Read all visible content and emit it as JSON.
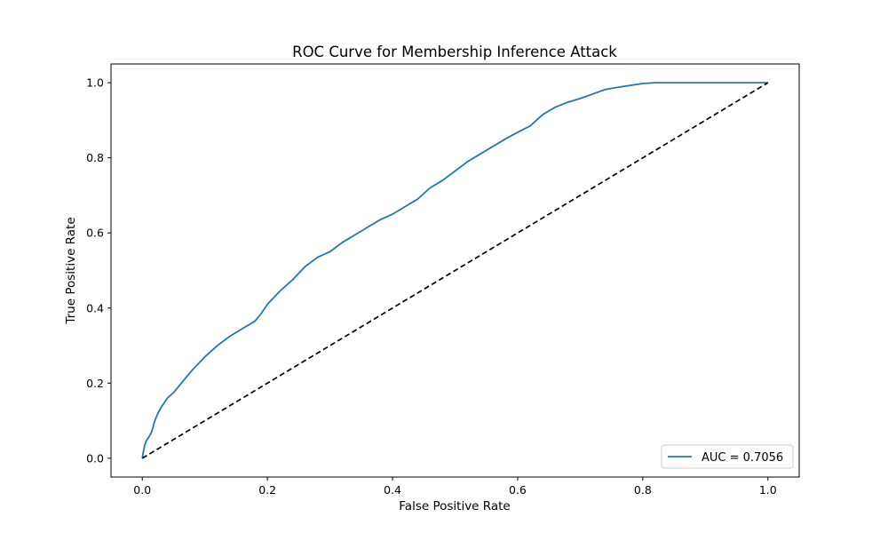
{
  "chart_data": {
    "type": "line",
    "title": "ROC Curve for Membership Inference Attack",
    "xlabel": "False Positive Rate",
    "ylabel": "True Positive Rate",
    "xlim": [
      -0.05,
      1.05
    ],
    "ylim": [
      -0.05,
      1.05
    ],
    "xticks": [
      0.0,
      0.2,
      0.4,
      0.6,
      0.8,
      1.0
    ],
    "yticks": [
      0.0,
      0.2,
      0.4,
      0.6,
      0.8,
      1.0
    ],
    "xtick_labels": [
      "0.0",
      "0.2",
      "0.4",
      "0.6",
      "0.8",
      "1.0"
    ],
    "ytick_labels": [
      "0.0",
      "0.2",
      "0.4",
      "0.6",
      "0.8",
      "1.0"
    ],
    "grid": false,
    "legend_position": "lower-right",
    "series": [
      {
        "name": "AUC = 0.7056",
        "color": "#1f77b4",
        "style": "solid",
        "x": [
          0.0,
          0.002,
          0.004,
          0.006,
          0.01,
          0.015,
          0.02,
          0.025,
          0.03,
          0.04,
          0.05,
          0.06,
          0.07,
          0.08,
          0.1,
          0.12,
          0.14,
          0.16,
          0.18,
          0.19,
          0.2,
          0.22,
          0.24,
          0.26,
          0.28,
          0.3,
          0.32,
          0.34,
          0.36,
          0.38,
          0.4,
          0.42,
          0.44,
          0.46,
          0.48,
          0.5,
          0.52,
          0.54,
          0.56,
          0.58,
          0.6,
          0.62,
          0.64,
          0.66,
          0.68,
          0.7,
          0.72,
          0.74,
          0.76,
          0.78,
          0.8,
          0.82,
          0.85,
          0.9,
          0.95,
          1.0
        ],
        "y": [
          0.0,
          0.02,
          0.035,
          0.045,
          0.055,
          0.07,
          0.1,
          0.12,
          0.135,
          0.16,
          0.175,
          0.195,
          0.215,
          0.235,
          0.27,
          0.3,
          0.325,
          0.345,
          0.365,
          0.385,
          0.41,
          0.445,
          0.475,
          0.51,
          0.535,
          0.55,
          0.575,
          0.595,
          0.615,
          0.635,
          0.65,
          0.67,
          0.69,
          0.72,
          0.74,
          0.765,
          0.79,
          0.81,
          0.83,
          0.85,
          0.868,
          0.885,
          0.915,
          0.935,
          0.948,
          0.958,
          0.97,
          0.982,
          0.988,
          0.993,
          0.998,
          1.0,
          1.0,
          1.0,
          1.0,
          1.0
        ]
      },
      {
        "name": "",
        "color": "#000000",
        "style": "dashed",
        "x": [
          0.0,
          1.0
        ],
        "y": [
          0.0,
          1.0
        ]
      }
    ]
  }
}
